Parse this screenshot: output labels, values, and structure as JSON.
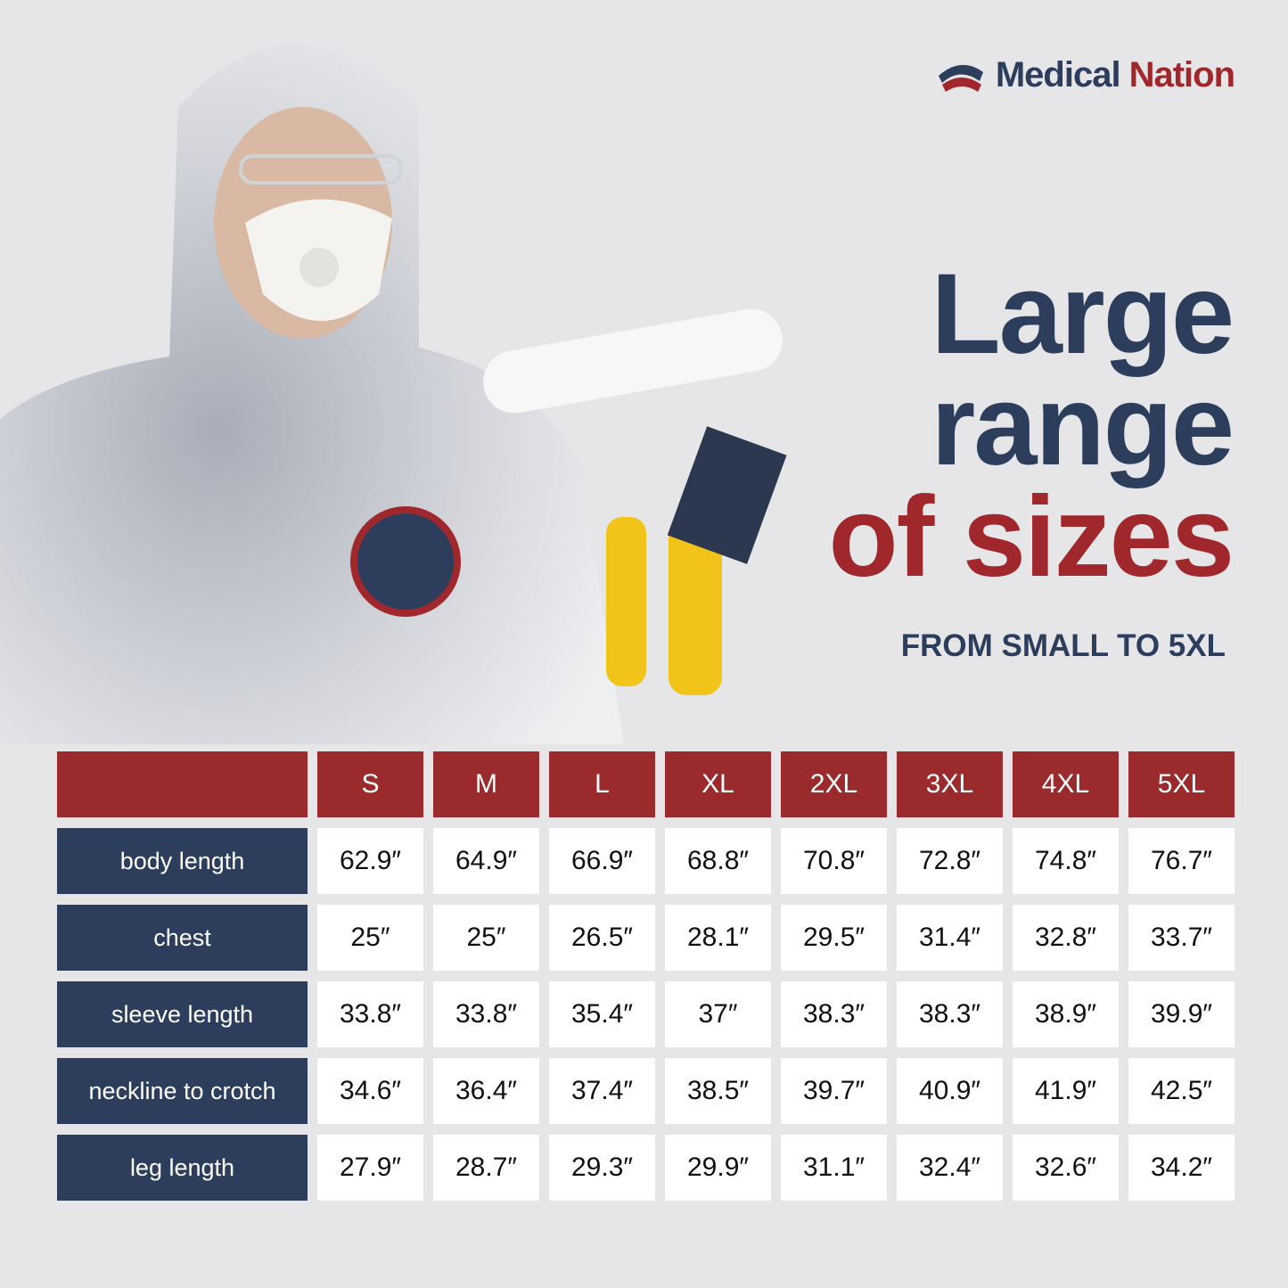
{
  "brand": {
    "part1": "Medical",
    "part2": "Nation"
  },
  "headline": {
    "line1": "Large",
    "line2": "range",
    "line3": "of sizes"
  },
  "subtitle": "FROM SMALL TO 5XL",
  "table": {
    "sizes": [
      "S",
      "M",
      "L",
      "XL",
      "2XL",
      "3XL",
      "4XL",
      "5XL"
    ],
    "rows": [
      {
        "label": "body length",
        "values": [
          "62.9″",
          "64.9″",
          "66.9″",
          "68.8″",
          "70.8″",
          "72.8″",
          "74.8″",
          "76.7″"
        ]
      },
      {
        "label": "chest",
        "values": [
          "25″",
          "25″",
          "26.5″",
          "28.1″",
          "29.5″",
          "31.4″",
          "32.8″",
          "33.7″"
        ]
      },
      {
        "label": "sleeve length",
        "values": [
          "33.8″",
          "33.8″",
          "35.4″",
          "37″",
          "38.3″",
          "38.3″",
          "38.9″",
          "39.9″"
        ]
      },
      {
        "label": "neckline to crotch",
        "values": [
          "34.6″",
          "36.4″",
          "37.4″",
          "38.5″",
          "39.7″",
          "40.9″",
          "41.9″",
          "42.5″"
        ]
      },
      {
        "label": "leg length",
        "values": [
          "27.9″",
          "28.7″",
          "29.3″",
          "29.9″",
          "31.1″",
          "32.4″",
          "32.6″",
          "34.2″"
        ]
      }
    ]
  }
}
